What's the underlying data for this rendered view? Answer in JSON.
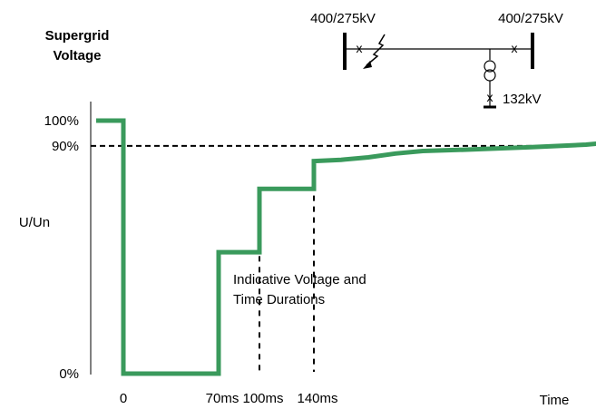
{
  "colors": {
    "curve": "#3a9a5c",
    "ink": "#000000",
    "background": "#ffffff"
  },
  "title_lines": [
    "Supergrid",
    "Voltage"
  ],
  "y_ticks": [
    {
      "label": "100%",
      "value": 100
    },
    {
      "label": "90%",
      "value": 90
    },
    {
      "label": "0%",
      "value": 0
    }
  ],
  "x_ticks": [
    {
      "label": "0",
      "value": 0
    },
    {
      "label": "70ms",
      "value": 70
    },
    {
      "label": "100ms",
      "value": 100
    },
    {
      "label": "140ms",
      "value": 140
    }
  ],
  "chart_data": {
    "type": "line",
    "title": "Supergrid Voltage",
    "xlabel": "Time",
    "ylabel": "U/Un",
    "xlim": [
      -20,
      350
    ],
    "ylim": [
      0,
      108
    ],
    "grid": false,
    "series": [
      {
        "values_x": [
          -20,
          0,
          0,
          70,
          70,
          100,
          100,
          140,
          140,
          160,
          180,
          200,
          220,
          250,
          300,
          340,
          350
        ],
        "values_y": [
          100,
          100,
          0,
          0,
          48,
          48,
          73,
          73,
          84,
          84.5,
          85.5,
          87,
          88,
          88.5,
          89.5,
          90.5,
          91
        ]
      }
    ],
    "reference_line": {
      "y": 90,
      "style": "dashed"
    },
    "vertical_markers": [
      {
        "x": 100,
        "style": "dashed"
      },
      {
        "x": 140,
        "style": "dashed"
      }
    ],
    "annotation": [
      "Indicative Voltage and",
      "Time Durations"
    ]
  },
  "diagram": {
    "busbar_left_label": "400/275kV",
    "busbar_right_label": "400/275kV",
    "lower_label": "132kV",
    "breaker_mark": "x"
  }
}
